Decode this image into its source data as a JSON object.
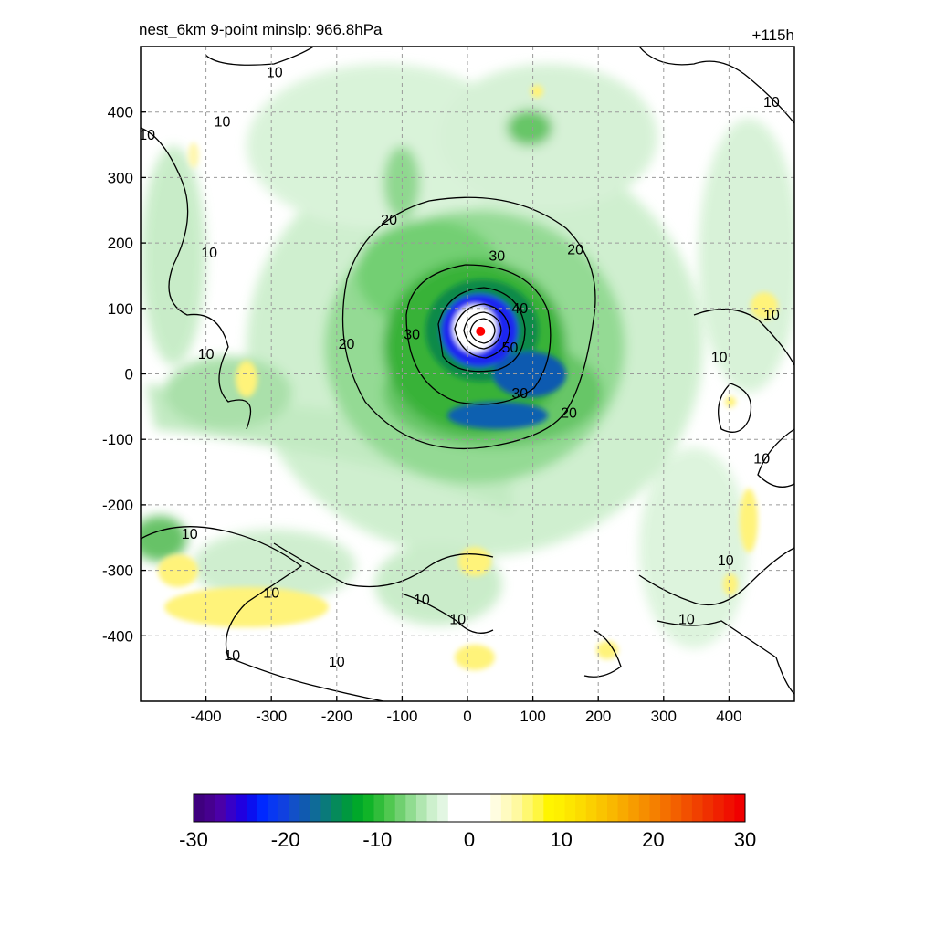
{
  "chart_data": {
    "type": "heatmap",
    "title_left": "nest_6km  9-point minslp: 966.8hPa",
    "title_right": "+115h",
    "x_ticks": [
      -400,
      -300,
      -200,
      -100,
      0,
      100,
      200,
      300,
      400
    ],
    "y_ticks": [
      400,
      300,
      200,
      100,
      0,
      -100,
      -200,
      -300,
      -400
    ],
    "xlim": [
      -500,
      500
    ],
    "ylim": [
      -500,
      500
    ],
    "grid": true,
    "grid_style": "dashed",
    "center_marker": {
      "x": 20,
      "y": 65,
      "color": "#ff0000"
    },
    "contour_levels": [
      10,
      20,
      30,
      40,
      50
    ],
    "contour_labels": [
      {
        "text": "10",
        "x": -295,
        "y": 460
      },
      {
        "text": "10",
        "x": -375,
        "y": 385
      },
      {
        "text": "10",
        "x": -490,
        "y": 365
      },
      {
        "text": "10",
        "x": -395,
        "y": 185
      },
      {
        "text": "10",
        "x": -400,
        "y": 30
      },
      {
        "text": "20",
        "x": -120,
        "y": 235
      },
      {
        "text": "30",
        "x": 45,
        "y": 180
      },
      {
        "text": "20",
        "x": 165,
        "y": 190
      },
      {
        "text": "40",
        "x": 80,
        "y": 100
      },
      {
        "text": "30",
        "x": -85,
        "y": 60
      },
      {
        "text": "50",
        "x": 65,
        "y": 40
      },
      {
        "text": "20",
        "x": -185,
        "y": 45
      },
      {
        "text": "30",
        "x": 80,
        "y": -30
      },
      {
        "text": "20",
        "x": 155,
        "y": -60
      },
      {
        "text": "10",
        "x": 465,
        "y": 415
      },
      {
        "text": "10",
        "x": 465,
        "y": 90
      },
      {
        "text": "10",
        "x": 385,
        "y": 25
      },
      {
        "text": "10",
        "x": 450,
        "y": -130
      },
      {
        "text": "10",
        "x": 395,
        "y": -285
      },
      {
        "text": "10",
        "x": 335,
        "y": -375
      },
      {
        "text": "10",
        "x": -425,
        "y": -245
      },
      {
        "text": "10",
        "x": -300,
        "y": -335
      },
      {
        "text": "10",
        "x": -70,
        "y": -345
      },
      {
        "text": "10",
        "x": -15,
        "y": -375
      },
      {
        "text": "10",
        "x": -360,
        "y": -430
      },
      {
        "text": "10",
        "x": -200,
        "y": -440
      }
    ],
    "colorbar": {
      "min": -30,
      "max": 30,
      "ticks": [
        "-30",
        "-20",
        "-10",
        "0",
        "10",
        "20",
        "30"
      ],
      "colors": [
        "#3f007f",
        "#46008f",
        "#4b00a8",
        "#3700c8",
        "#2000e0",
        "#0a10f0",
        "#0028ff",
        "#0838f2",
        "#1040e0",
        "#1250c8",
        "#105ab0",
        "#0f6b98",
        "#0a7a7a",
        "#058a5a",
        "#00983f",
        "#00a82a",
        "#10b428",
        "#30bd3a",
        "#50c850",
        "#70d070",
        "#90dc90",
        "#b0e6b0",
        "#cdf0cd",
        "#e2f6e2",
        "#ffffff",
        "#ffffff",
        "#ffffff",
        "#ffffff",
        "#fffde0",
        "#fffbc0",
        "#fff9a0",
        "#fff870",
        "#fff640",
        "#fff500",
        "#fef000",
        "#fde600",
        "#fcdc00",
        "#fbd000",
        "#fac400",
        "#f9b800",
        "#f8aa00",
        "#f79c00",
        "#f68e00",
        "#f58000",
        "#f47000",
        "#f36000",
        "#f25000",
        "#f14000",
        "#f03000",
        "#f02000",
        "#f01000",
        "#f00000"
      ]
    }
  }
}
